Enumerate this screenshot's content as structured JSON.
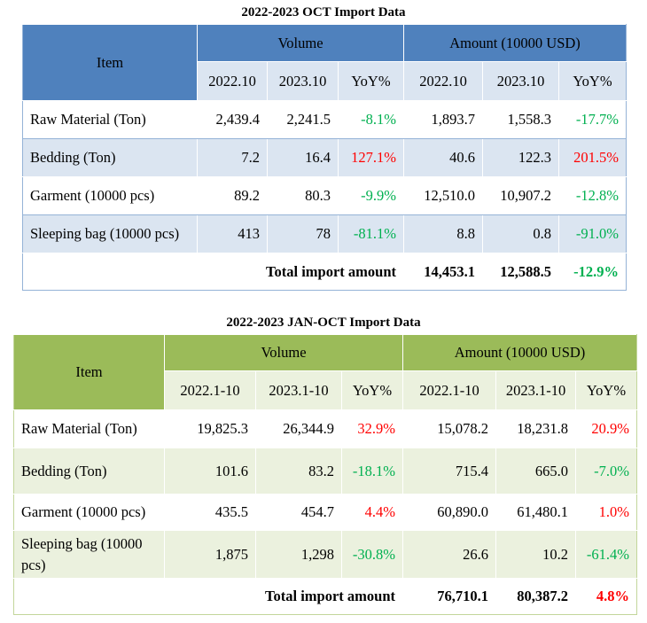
{
  "oct": {
    "title": "2022-2023 OCT Import Data",
    "item_header": "Item",
    "volume_header": "Volume",
    "amount_header": "Amount (10000 USD)",
    "sub_headers": [
      "2022.10",
      "2023.10",
      "YoY%",
      "2022.10",
      "2023.10",
      "YoY%"
    ],
    "rows": [
      {
        "item": "Raw Material (Ton)",
        "v22": "2,439.4",
        "v23": "2,241.5",
        "vyoy": "-8.1%",
        "a22": "1,893.7",
        "a23": "1,558.3",
        "ayoy": "-17.7%"
      },
      {
        "item": "Bedding (Ton)",
        "v22": "7.2",
        "v23": "16.4",
        "vyoy": "127.1%",
        "a22": "40.6",
        "a23": "122.3",
        "ayoy": "201.5%"
      },
      {
        "item": "Garment (10000 pcs)",
        "v22": "89.2",
        "v23": "80.3",
        "vyoy": "-9.9%",
        "a22": "12,510.0",
        "a23": "10,907.2",
        "ayoy": "-12.8%"
      },
      {
        "item": "Sleeping bag (10000 pcs)",
        "v22": "413",
        "v23": "78",
        "vyoy": "-81.1%",
        "a22": "8.8",
        "a23": "0.8",
        "ayoy": "-91.0%"
      }
    ],
    "total": {
      "label": "Total import amount",
      "a22": "14,453.1",
      "a23": "12,588.5",
      "ayoy": "-12.9%"
    }
  },
  "janoct": {
    "title": "2022-2023 JAN-OCT Import Data",
    "item_header": "Item",
    "volume_header": "Volume",
    "amount_header": "Amount (10000 USD)",
    "sub_headers": [
      "2022.1-10",
      "2023.1-10",
      "YoY%",
      "2022.1-10",
      "2023.1-10",
      "YoY%"
    ],
    "rows": [
      {
        "item": "Raw Material (Ton)",
        "v22": "19,825.3",
        "v23": "26,344.9",
        "vyoy": "32.9%",
        "a22": "15,078.2",
        "a23": "18,231.8",
        "ayoy": "20.9%"
      },
      {
        "item": "Bedding (Ton)",
        "v22": "101.6",
        "v23": "83.2",
        "vyoy": "-18.1%",
        "a22": "715.4",
        "a23": "665.0",
        "ayoy": "-7.0%"
      },
      {
        "item": "Garment (10000 pcs)",
        "v22": "435.5",
        "v23": "454.7",
        "vyoy": "4.4%",
        "a22": "60,890.0",
        "a23": "61,480.1",
        "ayoy": "1.0%"
      },
      {
        "item": "Sleeping bag (10000 pcs)",
        "v22": "1,875",
        "v23": "1,298",
        "vyoy": "-30.8%",
        "a22": "26.6",
        "a23": "10.2",
        "ayoy": "-61.4%"
      }
    ],
    "total": {
      "label": "Total import amount",
      "a22": "76,710.1",
      "a23": "80,387.2",
      "ayoy": "4.8%"
    }
  },
  "colors": {
    "positive": "#ff0000",
    "negative": "#00b050",
    "oct_header": "#4f81bd",
    "janoct_header": "#9bbb59"
  }
}
